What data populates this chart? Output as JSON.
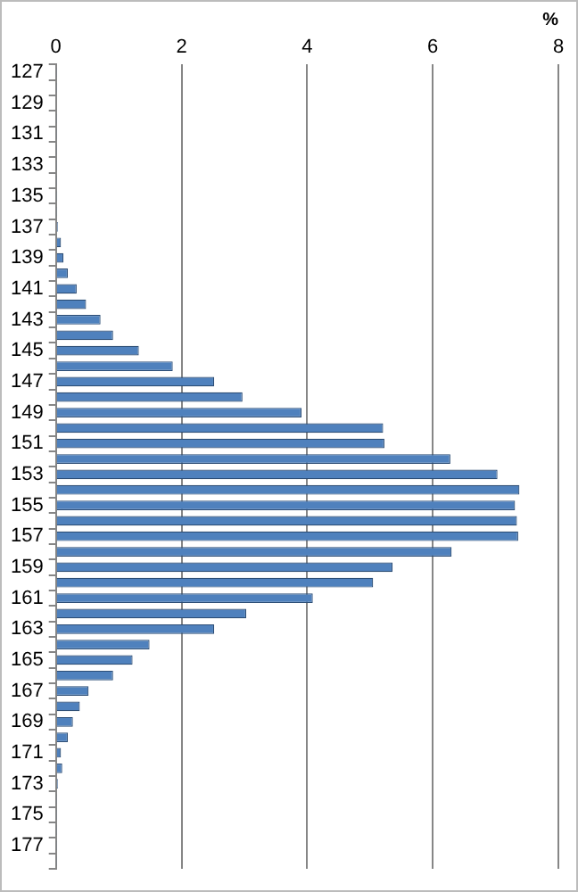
{
  "chart_data": {
    "type": "bar",
    "orientation": "horizontal",
    "xlabel": "%",
    "categories": [
      "127",
      null,
      "129",
      null,
      "131",
      null,
      "133",
      null,
      "135",
      null,
      "137",
      null,
      "139",
      null,
      "141",
      null,
      "143",
      null,
      "145",
      null,
      "147",
      null,
      "149",
      null,
      "151",
      null,
      "153",
      null,
      "155",
      null,
      "157",
      null,
      "159",
      null,
      "161",
      null,
      "163",
      null,
      "165",
      null,
      "167",
      null,
      "169",
      null,
      "171",
      null,
      "173",
      null,
      "175",
      null,
      "177",
      null
    ],
    "values": [
      0.01,
      0.01,
      0,
      0.01,
      0.01,
      0.01,
      0.01,
      0.01,
      0.02,
      0.02,
      0.03,
      0.08,
      0.12,
      0.19,
      0.33,
      0.48,
      0.71,
      0.91,
      1.32,
      1.86,
      2.52,
      2.97,
      3.91,
      5.21,
      5.23,
      6.28,
      7.03,
      7.38,
      7.31,
      7.34,
      7.36,
      6.3,
      5.36,
      5.05,
      4.09,
      3.03,
      2.52,
      1.49,
      1.22,
      0.91,
      0.52,
      0.38,
      0.27,
      0.19,
      0.08,
      0.1,
      0.03,
      0.01,
      0.01,
      0.01,
      0.01,
      0.01
    ],
    "color": "#4f81bd",
    "xlim": [
      0,
      8
    ],
    "xticks": [
      0,
      2,
      4,
      6,
      8
    ],
    "grid": "x"
  }
}
